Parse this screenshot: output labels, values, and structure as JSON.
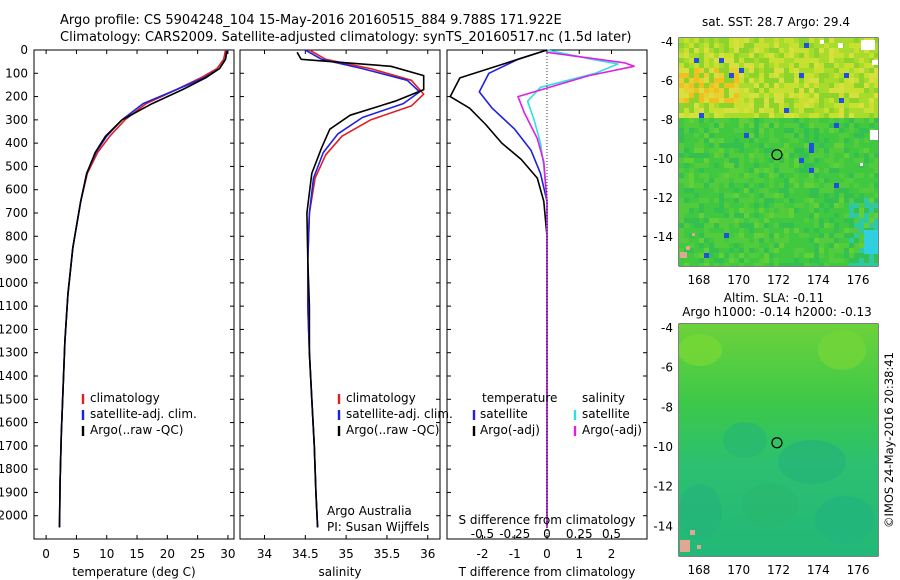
{
  "titles": {
    "line1": "Argo profile: CS 5904248_104 15-May-2016 20160515_884 9.788S 171.922E",
    "line2": "Climatology: CARS2009. Satellite-adjusted climatology: synTS_20160517.nc (1.5d later)"
  },
  "colors": {
    "climatology": "#e02020",
    "satellite": "#2020e0",
    "argo": "#000000",
    "sal_satellite": "#30e0e0",
    "sal_argo": "#e020e0"
  },
  "depth_axis": {
    "ylim": [
      0,
      2100
    ],
    "ticks": [
      0,
      100,
      200,
      300,
      400,
      500,
      600,
      700,
      800,
      900,
      1000,
      1100,
      1200,
      1300,
      1400,
      1500,
      1600,
      1700,
      1800,
      1900,
      2000
    ]
  },
  "chart_data": [
    {
      "type": "line",
      "id": "temperature",
      "xlabel": "temperature (deg C)",
      "xlim": [
        -2,
        31
      ],
      "xticks": [
        0,
        5,
        10,
        15,
        20,
        25,
        30
      ],
      "legend": [
        "climatology",
        "satellite-adj. clim.",
        "Argo(..raw -QC)"
      ],
      "series": [
        {
          "name": "climatology",
          "color_key": "climatology",
          "x": [
            29.6,
            29.3,
            28.2,
            25.5,
            21.5,
            16.5,
            13.0,
            10.5,
            8.5,
            6.8,
            5.7,
            4.4,
            3.6,
            3.1,
            2.8,
            2.5,
            2.3,
            2.2
          ],
          "y": [
            0,
            40,
            80,
            120,
            170,
            230,
            300,
            370,
            440,
            530,
            650,
            850,
            1050,
            1250,
            1450,
            1650,
            1850,
            2050
          ]
        },
        {
          "name": "satellite-adj. clim.",
          "color_key": "satellite",
          "x": [
            29.9,
            29.6,
            28.6,
            26.0,
            21.5,
            16.0,
            12.5,
            10.0,
            8.2,
            6.7,
            5.7,
            4.4,
            3.6,
            3.1,
            2.8,
            2.5,
            2.3,
            2.2
          ],
          "y": [
            0,
            40,
            80,
            120,
            170,
            230,
            300,
            370,
            440,
            530,
            650,
            850,
            1050,
            1250,
            1450,
            1650,
            1850,
            2050
          ]
        },
        {
          "name": "Argo(..raw -QC)",
          "color_key": "argo",
          "x": [
            29.8,
            29.6,
            28.6,
            26.3,
            22.5,
            17.5,
            12.5,
            9.8,
            8.1,
            6.7,
            5.7,
            4.4,
            3.6,
            3.1,
            2.8,
            2.5,
            2.3,
            2.2
          ],
          "y": [
            5,
            40,
            80,
            120,
            170,
            230,
            300,
            370,
            440,
            530,
            650,
            850,
            1050,
            1250,
            1450,
            1650,
            1850,
            2050
          ]
        }
      ]
    },
    {
      "type": "line",
      "id": "salinity",
      "xlabel": "salinity",
      "xlim": [
        33.7,
        36.15
      ],
      "xticks": [
        34,
        34.5,
        35,
        35.5,
        36
      ],
      "xticklabels": [
        "34",
        "34.5",
        "35",
        "35.5",
        "36"
      ],
      "legend": [
        "climatology",
        "satellite-adj. clim.",
        "Argo(..raw -QC)"
      ],
      "annotation": [
        "Argo Australia",
        "PI: Susan Wijffels"
      ],
      "series": [
        {
          "name": "climatology",
          "color_key": "climatology",
          "x": [
            34.55,
            34.75,
            35.3,
            35.8,
            35.95,
            35.8,
            35.3,
            34.95,
            34.75,
            34.62,
            34.55,
            34.53,
            34.53,
            34.55,
            34.58,
            34.61,
            34.63,
            34.65
          ],
          "y": [
            0,
            40,
            80,
            130,
            190,
            240,
            300,
            370,
            450,
            550,
            700,
            900,
            1100,
            1300,
            1500,
            1700,
            1900,
            2050
          ]
        },
        {
          "name": "satellite-adj. clim.",
          "color_key": "satellite",
          "x": [
            34.5,
            34.7,
            35.2,
            35.75,
            35.9,
            35.7,
            35.2,
            34.9,
            34.72,
            34.6,
            34.55,
            34.53,
            34.53,
            34.55,
            34.58,
            34.61,
            34.63,
            34.65
          ],
          "y": [
            0,
            40,
            80,
            130,
            180,
            230,
            290,
            360,
            440,
            550,
            700,
            900,
            1100,
            1300,
            1500,
            1700,
            1900,
            2050
          ]
        },
        {
          "name": "Argo(..raw -QC)",
          "color_key": "argo",
          "x": [
            34.4,
            34.45,
            35.55,
            35.95,
            35.95,
            35.6,
            35.05,
            34.8,
            34.7,
            34.58,
            34.52,
            34.53,
            34.55,
            34.55,
            34.58,
            34.61,
            34.63,
            34.65
          ],
          "y": [
            10,
            40,
            70,
            110,
            170,
            220,
            280,
            340,
            420,
            530,
            700,
            900,
            1100,
            1300,
            1500,
            1700,
            1900,
            2050
          ]
        }
      ]
    },
    {
      "type": "line",
      "id": "differences",
      "xlabel": "T difference from climatology",
      "xlim": [
        -3.1,
        3.1
      ],
      "xticks": [
        -2,
        -1,
        0,
        1,
        2
      ],
      "top_label": "S difference from climatology",
      "top_ticks": [
        -0.5,
        -0.25,
        0,
        0.25,
        0.5
      ],
      "top_ticklabels": [
        "-0.5",
        "-0.25",
        "0",
        "0.25",
        "0.5"
      ],
      "legend_temperature": [
        "temperature",
        "satellite",
        "Argo(-adj)"
      ],
      "legend_salinity": [
        "salinity",
        "satellite",
        "Argo(-adj)"
      ],
      "series": [
        {
          "name": "satellite",
          "color_key": "satellite",
          "x": [
            0.0,
            -0.9,
            -1.8,
            -2.1,
            -1.7,
            -1.0,
            -0.5,
            -0.2,
            0.0,
            0.0,
            0.0,
            0.0,
            0.0,
            0.0,
            0.0
          ],
          "y": [
            0,
            40,
            100,
            180,
            250,
            340,
            430,
            530,
            650,
            800,
            1000,
            1300,
            1600,
            1900,
            2050
          ]
        },
        {
          "name": "Argo(-adj)",
          "color_key": "argo",
          "x": [
            0.0,
            -2.7,
            -3.0,
            -2.4,
            -1.9,
            -1.4,
            -0.8,
            -0.3,
            -0.1,
            0.0,
            0.0,
            0.0,
            0.0,
            0.0,
            0.0
          ],
          "y": [
            0,
            120,
            200,
            250,
            320,
            400,
            470,
            550,
            650,
            800,
            1000,
            1300,
            1600,
            1900,
            2050
          ]
        },
        {
          "name": "salinity satellite",
          "color_key": "sal_satellite",
          "x": [
            0.0,
            1.4,
            2.2,
            1.5,
            -0.2,
            -0.6,
            -0.4,
            -0.2,
            -0.1,
            0.0,
            0.0,
            0.0,
            0.0,
            0.0
          ],
          "y": [
            0,
            40,
            60,
            100,
            160,
            220,
            300,
            400,
            500,
            650,
            900,
            1200,
            1600,
            2050
          ]
        },
        {
          "name": "salinity Argo(-adj)",
          "color_key": "sal_argo",
          "x": [
            0.0,
            1.6,
            2.4,
            2.7,
            1.3,
            -0.9,
            -0.7,
            -0.3,
            -0.1,
            0.0,
            0.0,
            0.0,
            0.0,
            0.0
          ],
          "y": [
            10,
            40,
            55,
            70,
            110,
            200,
            270,
            380,
            480,
            650,
            900,
            1200,
            1600,
            2050
          ]
        }
      ]
    }
  ],
  "maps": [
    {
      "id": "sst_map",
      "header": "sat. SST: 28.7 Argo: 29.4",
      "xlim": [
        167,
        177
      ],
      "ylim": [
        -15.5,
        -3.8
      ],
      "xticks": [
        168,
        170,
        172,
        174,
        176
      ],
      "yticks": [
        -4,
        -6,
        -8,
        -10,
        -12,
        -14
      ],
      "profile_location": {
        "lon": 171.922,
        "lat": -9.788
      }
    },
    {
      "id": "sla_map",
      "header": [
        "Altim. SLA: -0.11",
        "Argo h1000: -0.14 h2000: -0.13"
      ],
      "xlim": [
        167,
        177
      ],
      "ylim": [
        -15.5,
        -3.8
      ],
      "xticks": [
        168,
        170,
        172,
        174,
        176
      ],
      "yticks": [
        -4,
        -6,
        -8,
        -10,
        -12,
        -14
      ],
      "profile_location": {
        "lon": 171.922,
        "lat": -9.788
      }
    }
  ],
  "stamp": "©IMOS 24-May-2016 20:38:41"
}
